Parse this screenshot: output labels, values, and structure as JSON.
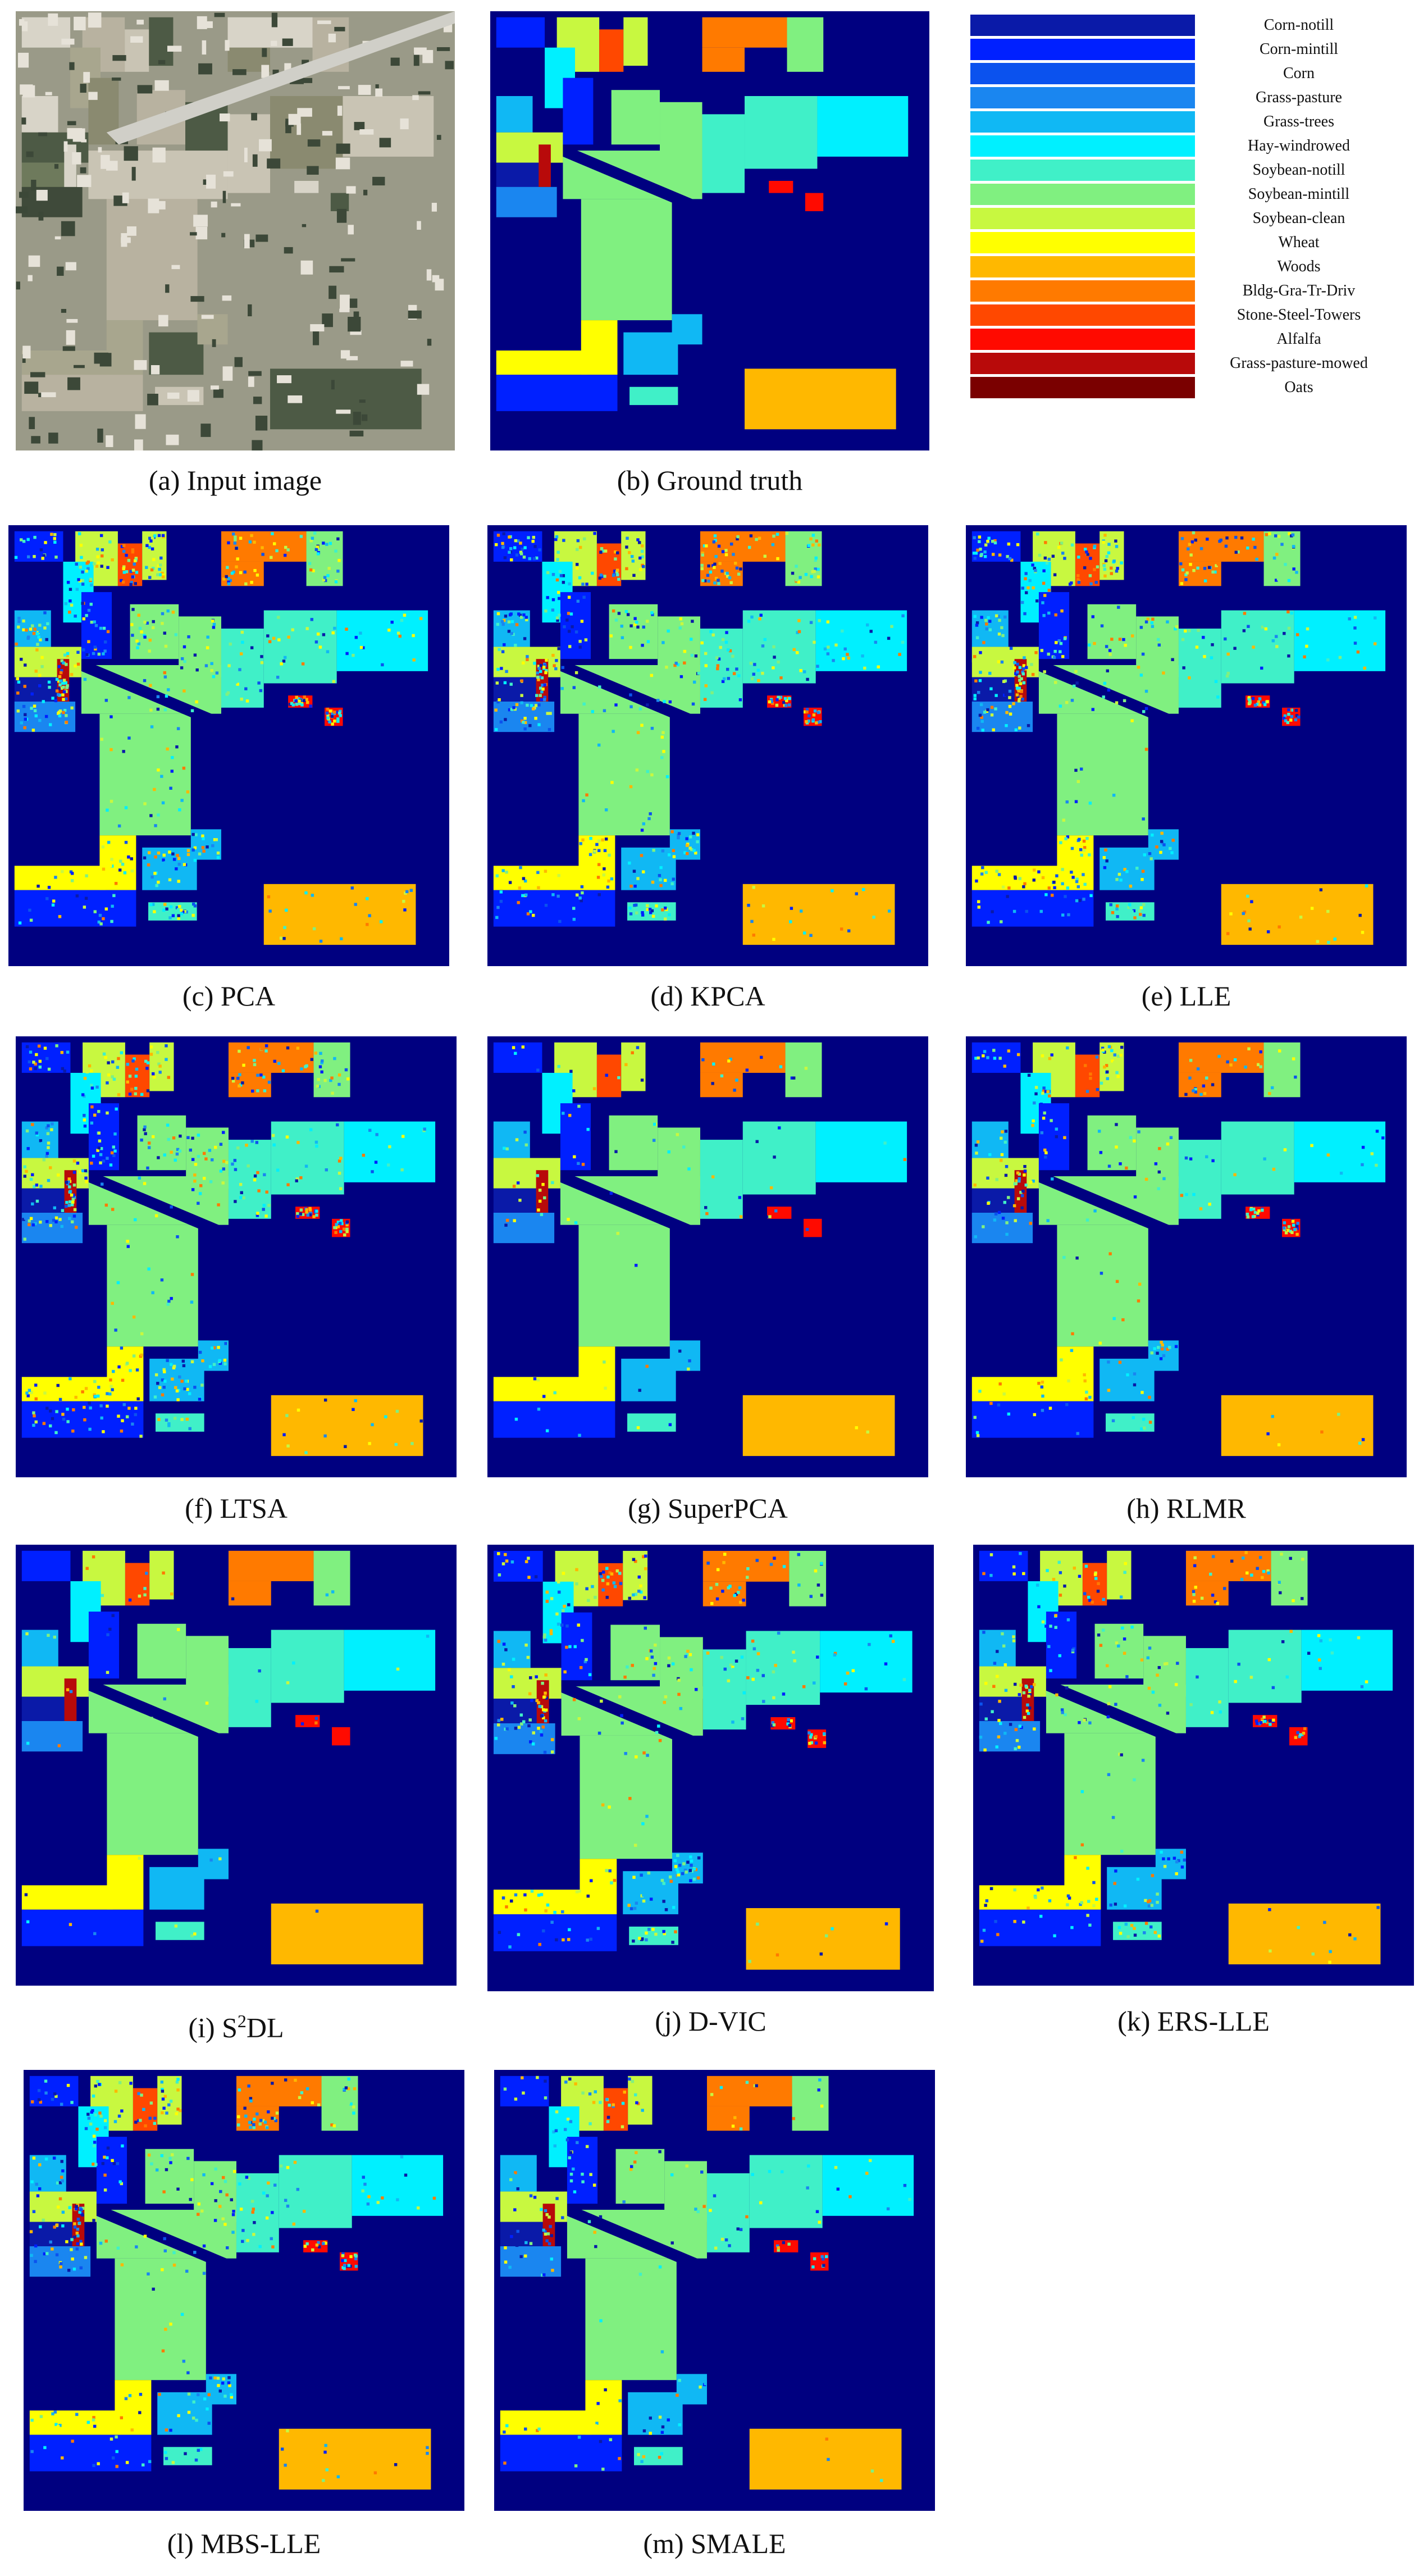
{
  "figure": {
    "panels": [
      {
        "id": "a",
        "caption": "(a) Input image",
        "kind": "rgb"
      },
      {
        "id": "b",
        "caption": "(b) Ground truth",
        "kind": "gt"
      },
      {
        "id": "c",
        "caption": "(c) PCA",
        "kind": "map",
        "noise": 0.25
      },
      {
        "id": "d",
        "caption": "(d) KPCA",
        "kind": "map",
        "noise": 0.25
      },
      {
        "id": "e",
        "caption": "(e) LLE",
        "kind": "map",
        "noise": 0.22
      },
      {
        "id": "f",
        "caption": "(f) LTSA",
        "kind": "map",
        "noise": 0.22
      },
      {
        "id": "g",
        "caption": "(g) SuperPCA",
        "kind": "map",
        "noise": 0.04
      },
      {
        "id": "h",
        "caption": "(h) RLMR",
        "kind": "map",
        "noise": 0.12
      },
      {
        "id": "i",
        "caption": "(i) S",
        "caption_sup": "2",
        "caption_suffix": "DL",
        "kind": "map",
        "noise": 0.02
      },
      {
        "id": "j",
        "caption": "(j) D-VIC",
        "kind": "map",
        "noise": 0.15
      },
      {
        "id": "k",
        "caption": "(k) ERS-LLE",
        "kind": "map",
        "noise": 0.12
      },
      {
        "id": "l",
        "caption": "(l) MBS-LLE",
        "kind": "map",
        "noise": 0.16
      },
      {
        "id": "m",
        "caption": "(m) SMALE",
        "kind": "map",
        "noise": 0.08
      }
    ]
  },
  "legend": [
    {
      "label": "Corn-notill",
      "color": "#0a1aa8"
    },
    {
      "label": "Corn-mintill",
      "color": "#0020ff"
    },
    {
      "label": "Corn",
      "color": "#0b52ee"
    },
    {
      "label": "Grass-pasture",
      "color": "#1a86f0"
    },
    {
      "label": "Grass-trees",
      "color": "#10b8f4"
    },
    {
      "label": "Hay-windrowed",
      "color": "#00f0ff"
    },
    {
      "label": "Soybean-notill",
      "color": "#40f0c8"
    },
    {
      "label": "Soybean-mintill",
      "color": "#80f080"
    },
    {
      "label": "Soybean-clean",
      "color": "#c8f840"
    },
    {
      "label": "Wheat",
      "color": "#ffff00"
    },
    {
      "label": "Woods",
      "color": "#ffb800"
    },
    {
      "label": "Bldg-Gra-Tr-Driv",
      "color": "#ff7a00"
    },
    {
      "label": "Stone-Steel-Towers",
      "color": "#ff4800"
    },
    {
      "label": "Alfalfa",
      "color": "#ff0a00"
    },
    {
      "label": "Grass-pasture-mowed",
      "color": "#b80a0a"
    },
    {
      "label": "Oats",
      "color": "#7a0000"
    }
  ],
  "background_color": "#000080"
}
